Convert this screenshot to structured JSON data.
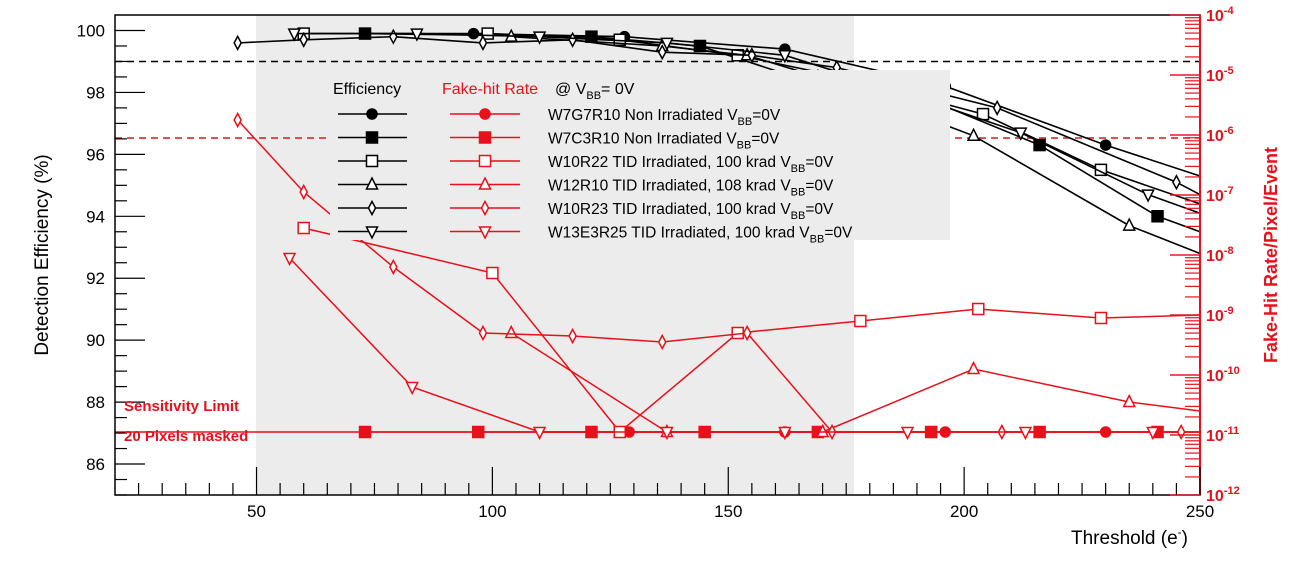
{
  "chart_data": {
    "type": "line",
    "title": "",
    "xlabel": "Threshold (e",
    "xlabel_sup": "-",
    "xlabel_close": ")",
    "ylabel": "Detection Efficiency (%)",
    "y2label": "Fake-Hit Rate/Pixel/Event",
    "xlim": [
      20,
      250
    ],
    "ylim": [
      85,
      100.5
    ],
    "y2lim_log10": [
      -12,
      -4
    ],
    "x_ticks": [
      50,
      100,
      150,
      200,
      250
    ],
    "x_tick_labels": [
      "50",
      "100",
      "150",
      "200",
      "250"
    ],
    "y_ticks": [
      86,
      88,
      90,
      92,
      94,
      96,
      98,
      100
    ],
    "y_tick_labels": [
      "86",
      "88",
      "90",
      "92",
      "94",
      "96",
      "98",
      "100"
    ],
    "y2_ticks_log10": [
      -12,
      -11,
      -10,
      -9,
      -8,
      -7,
      -6,
      -5,
      -4
    ],
    "y2_tick_base": "10",
    "y2_tick_exponents": [
      "-12",
      "-11",
      "-10",
      "-9",
      "-8",
      "-7",
      "-6",
      "-5",
      "-4"
    ],
    "shaded_region_x": [
      50,
      177
    ],
    "efficiency_ref_line_y": 99,
    "fakehit_ref_line_log10": -6.05,
    "colors": {
      "efficiency": "#000000",
      "fakehit": "#e8101b",
      "shade": "#ececec"
    },
    "legend": {
      "placement": "upper-center",
      "efficiency_header": "Efficiency",
      "fakehit_header": "Fake-hit Rate",
      "condition_prefix": "@ V",
      "condition_sub": "BB",
      "condition_suffix": "= 0V",
      "entries": [
        {
          "main": "W7G7R10 Non Irradiated V",
          "sub": "BB",
          "suffix": "=0V",
          "marker": "circle-filled"
        },
        {
          "main": "W7C3R10 Non Irradiated V",
          "sub": "BB",
          "suffix": "=0V",
          "marker": "square-filled"
        },
        {
          "main": "W10R22 TID Irradiated, 100 krad V",
          "sub": "BB",
          "suffix": "=0V",
          "marker": "square-open"
        },
        {
          "main": "W12R10 TID Irradiated, 108 krad V",
          "sub": "BB",
          "suffix": "=0V",
          "marker": "triangle-up-open"
        },
        {
          "main": "W10R23 TID Irradiated, 100 krad V",
          "sub": "BB",
          "suffix": "=0V",
          "marker": "diamond-open"
        },
        {
          "main": "W13E3R25 TID Irradiated, 100 krad V",
          "sub": "BB",
          "suffix": "=0V",
          "marker": "triangle-down-open"
        }
      ]
    },
    "annotations": [
      "Sensitivity Limit",
      "20 Pixels masked"
    ],
    "series": [
      {
        "name": "W7G7R10 efficiency",
        "marker": "circle-filled",
        "x": [
          96,
          128,
          162,
          196,
          230,
          250
        ],
        "y": [
          99.9,
          99.8,
          99.4,
          98.2,
          96.3,
          95.3
        ]
      },
      {
        "name": "W7C3R10 efficiency",
        "marker": "square-filled",
        "x": [
          73,
          121,
          144,
          168,
          192,
          216,
          241,
          250
        ],
        "y": [
          99.9,
          99.8,
          99.5,
          98.3,
          97.8,
          96.3,
          94.0,
          93.5
        ]
      },
      {
        "name": "W10R22 efficiency",
        "marker": "square-open",
        "x": [
          60,
          99,
          127,
          152,
          177,
          204,
          229,
          250
        ],
        "y": [
          99.9,
          99.9,
          99.7,
          99.2,
          98.4,
          97.3,
          95.5,
          94.4
        ]
      },
      {
        "name": "W12R10 efficiency",
        "marker": "triangle-up-open",
        "x": [
          104,
          136,
          154,
          169,
          202,
          235,
          250
        ],
        "y": [
          99.8,
          99.5,
          99.2,
          98.5,
          96.6,
          93.7,
          92.8
        ]
      },
      {
        "name": "W10R23 efficiency",
        "marker": "diamond-open",
        "x": [
          46,
          60,
          79,
          98,
          117,
          136,
          155,
          173,
          207,
          245,
          250
        ],
        "y": [
          99.6,
          99.7,
          99.8,
          99.6,
          99.7,
          99.3,
          99.2,
          98.8,
          97.5,
          95.1,
          94.7
        ]
      },
      {
        "name": "W13E3R25 efficiency",
        "marker": "triangle-down-open",
        "x": [
          58,
          84,
          110,
          137,
          162,
          187,
          212,
          239,
          250
        ],
        "y": [
          99.9,
          99.9,
          99.8,
          99.6,
          99.2,
          98.0,
          96.7,
          94.7,
          94.1
        ]
      },
      {
        "name": "W7G7R10 fake-hit",
        "marker": "circle-filled",
        "x": [
          97,
          129,
          162,
          196,
          230,
          250
        ],
        "log10y": [
          -10.95,
          -10.95,
          -10.95,
          -10.95,
          -10.95,
          -10.95
        ]
      },
      {
        "name": "W7C3R10 fake-hit",
        "marker": "square-filled",
        "x": [
          73,
          97,
          121,
          145,
          169,
          193,
          216,
          241,
          250
        ],
        "log10y": [
          -10.95,
          -10.95,
          -10.95,
          -10.95,
          -10.95,
          -10.95,
          -10.95,
          -10.95,
          -10.95
        ]
      },
      {
        "name": "W10R22 fake-hit",
        "marker": "square-open",
        "x": [
          60,
          100,
          127,
          152,
          178,
          203,
          229,
          250
        ],
        "log10y": [
          -7.55,
          -8.3,
          -10.95,
          -9.3,
          -9.1,
          -8.9,
          -9.05,
          -9.0
        ]
      },
      {
        "name": "W12R10 fake-hit",
        "marker": "triangle-up-open",
        "x": [
          104,
          137,
          170,
          202,
          235,
          250
        ],
        "log10y": [
          -9.3,
          -10.95,
          -10.95,
          -9.9,
          -10.45,
          -10.6
        ]
      },
      {
        "name": "W10R23 fake-hit",
        "marker": "diamond-open",
        "x": [
          46,
          60,
          79,
          98,
          117,
          136,
          154,
          172,
          208,
          246
        ],
        "log10y": [
          -5.75,
          -6.95,
          -8.2,
          -9.3,
          -9.35,
          -9.45,
          -9.3,
          -10.95,
          -10.95,
          -10.95
        ]
      },
      {
        "name": "W13E3R25 fake-hit",
        "marker": "triangle-down-open",
        "x": [
          57,
          83,
          110,
          137,
          162,
          188,
          213,
          240
        ],
        "log10y": [
          -8.05,
          -10.2,
          -10.95,
          -10.95,
          -10.95,
          -10.95,
          -10.95,
          -10.95
        ]
      }
    ]
  }
}
